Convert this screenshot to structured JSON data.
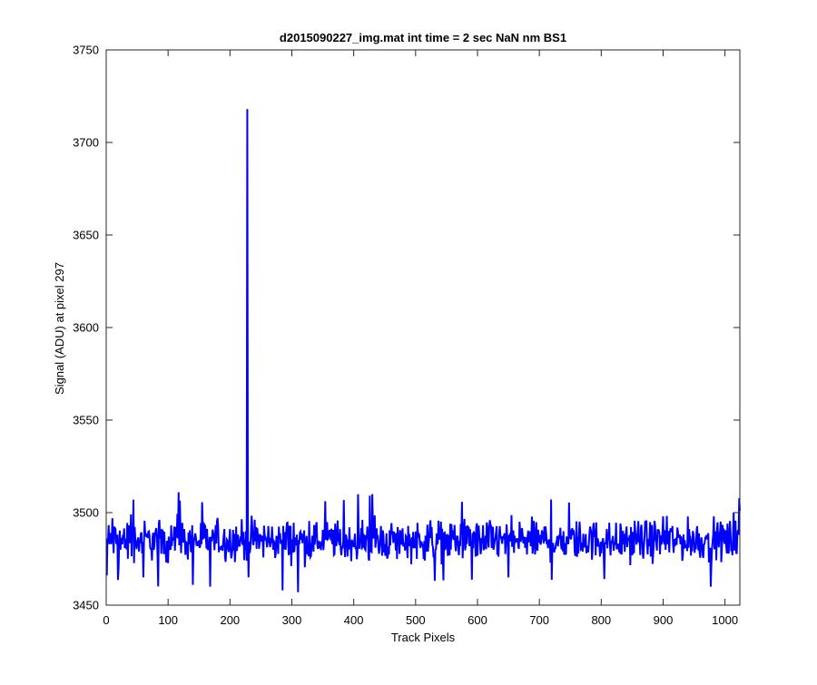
{
  "chart_data": {
    "type": "line",
    "title": "d2015090227_img.mat int time = 2 sec  NaN nm BS1",
    "xlabel": "Track Pixels",
    "ylabel": "Signal (ADU) at pixel 297",
    "xlim": [
      0,
      1024
    ],
    "ylim": [
      3450,
      3750
    ],
    "xticks": [
      0,
      100,
      200,
      300,
      400,
      500,
      600,
      700,
      800,
      900,
      1000
    ],
    "yticks": [
      3450,
      3500,
      3550,
      3600,
      3650,
      3700,
      3750
    ],
    "grid": false,
    "line_color": "#0000ff",
    "series": [
      {
        "baseline": 3485,
        "noise_range": [
          3458,
          3511
        ],
        "spike": {
          "x": 228,
          "y": 3718
        },
        "x_start": 1,
        "x_end": 1024,
        "sample_points": [
          {
            "x": 1,
            "y": 3466
          },
          {
            "x": 5,
            "y": 3483
          },
          {
            "x": 10,
            "y": 3497
          },
          {
            "x": 20,
            "y": 3470
          },
          {
            "x": 40,
            "y": 3499
          },
          {
            "x": 60,
            "y": 3465
          },
          {
            "x": 117,
            "y": 3511
          },
          {
            "x": 140,
            "y": 3461
          },
          {
            "x": 168,
            "y": 3460
          },
          {
            "x": 226,
            "y": 3490
          },
          {
            "x": 228,
            "y": 3718
          },
          {
            "x": 230,
            "y": 3465
          },
          {
            "x": 285,
            "y": 3458
          },
          {
            "x": 310,
            "y": 3457
          },
          {
            "x": 430,
            "y": 3510
          },
          {
            "x": 650,
            "y": 3465
          },
          {
            "x": 1014,
            "y": 3500
          },
          {
            "x": 1024,
            "y": 3501
          }
        ]
      }
    ]
  }
}
